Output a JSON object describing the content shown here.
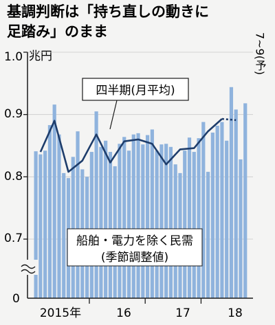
{
  "chart_data": {
    "type": "bar",
    "title_lines": [
      "基調判断は「持ち直しの動きに",
      "足踏み」のまま"
    ],
    "unit": "兆円",
    "y_ticks": [
      "1.0",
      "0.9",
      "0.8",
      "0.7",
      "0"
    ],
    "x_labels": [
      "2015年",
      "16",
      "17",
      "18"
    ],
    "series": [
      {
        "values": [
          0.841,
          0.836,
          0.842,
          0.883,
          0.916,
          0.868,
          0.806,
          0.798,
          0.832,
          0.873,
          0.812,
          0.8,
          0.84,
          0.905,
          0.848,
          0.858,
          0.84,
          0.817,
          0.853,
          0.864,
          0.842,
          0.868,
          0.87,
          0.852,
          0.867,
          0.876,
          0.842,
          0.852,
          0.853,
          0.848,
          0.82,
          0.806,
          0.842,
          0.863,
          0.84,
          0.862,
          0.888,
          0.808,
          0.871,
          0.882,
          0.888,
          0.858,
          0.944,
          0.908,
          0.828,
          0.918
        ]
      },
      {
        "name": "四半期(月平均)",
        "values": [
          0.84,
          0.89,
          0.808,
          0.826,
          0.868,
          0.823,
          0.857,
          0.86,
          0.853,
          0.82,
          0.844,
          0.846,
          0.873,
          0.893
        ],
        "forecast_label": "7~9(予)",
        "forecast_value": 0.891
      }
    ],
    "annotation_lines": [
      "船舶・電力を除く民需",
      "(季節調整値)"
    ],
    "ylim_top": 1.0,
    "y_break_between": [
      0.0,
      0.65
    ],
    "colors": {
      "bar": "#8fb3dd",
      "line": "#1e3d6b",
      "axis": "#1a1a1a"
    }
  }
}
